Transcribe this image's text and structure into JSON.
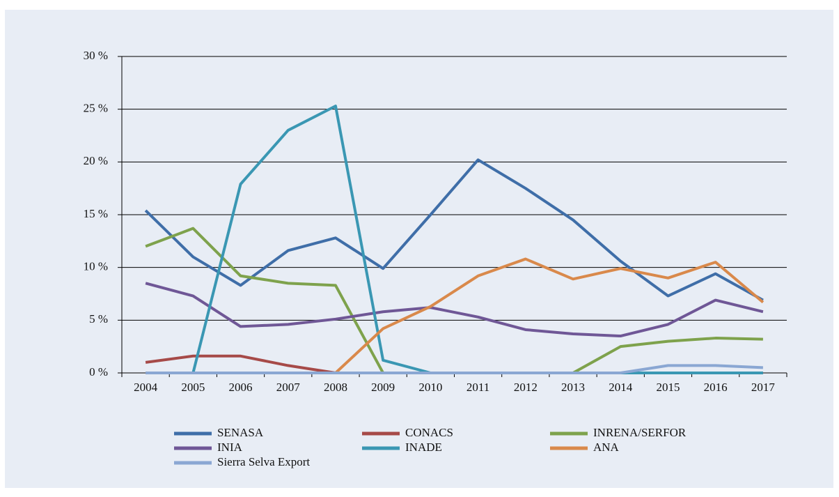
{
  "chart_data": {
    "type": "line",
    "categories": [
      "2004",
      "2005",
      "2006",
      "2007",
      "2008",
      "2009",
      "2010",
      "2011",
      "2012",
      "2013",
      "2014",
      "2015",
      "2016",
      "2017"
    ],
    "ylim": [
      0,
      30
    ],
    "yticks": [
      {
        "value": 0,
        "label": "0 %"
      },
      {
        "value": 5,
        "label": "5 %"
      },
      {
        "value": 10,
        "label": "10 %"
      },
      {
        "value": 15,
        "label": "15 %"
      },
      {
        "value": 20,
        "label": "20 %"
      },
      {
        "value": 25,
        "label": "25 %"
      },
      {
        "value": 30,
        "label": "30 %"
      }
    ],
    "grid": true,
    "legend": "bottom",
    "series": [
      {
        "name": "SENASA",
        "color": "#3f6ea8",
        "values": [
          15.4,
          11.0,
          8.3,
          11.6,
          12.8,
          9.9,
          15.0,
          20.2,
          17.5,
          14.5,
          10.6,
          7.3,
          9.4,
          6.9
        ]
      },
      {
        "name": "CONACS",
        "color": "#a64a48",
        "values": [
          1.0,
          1.6,
          1.6,
          0.7,
          0,
          0,
          0,
          0,
          0,
          0,
          0,
          0,
          0,
          0
        ]
      },
      {
        "name": "INRENA/SERFOR",
        "color": "#7ea24c",
        "values": [
          12.0,
          13.7,
          9.2,
          8.5,
          8.3,
          0,
          0,
          0,
          0,
          0,
          2.5,
          3.0,
          3.3,
          3.2
        ]
      },
      {
        "name": "INIA",
        "color": "#6f5796",
        "values": [
          8.5,
          7.3,
          4.4,
          4.6,
          5.1,
          5.8,
          6.2,
          5.3,
          4.1,
          3.7,
          3.5,
          4.6,
          6.9,
          5.8
        ]
      },
      {
        "name": "INADE",
        "color": "#3a97b3",
        "values": [
          0,
          0,
          17.9,
          23.0,
          25.3,
          1.2,
          0,
          0,
          0,
          0,
          0,
          0,
          0,
          0
        ]
      },
      {
        "name": "ANA",
        "color": "#d9894b",
        "values": [
          0,
          0,
          0,
          0,
          0,
          4.2,
          6.3,
          9.2,
          10.8,
          8.9,
          9.9,
          9.0,
          10.5,
          6.7
        ]
      },
      {
        "name": "Sierra Selva Export",
        "color": "#8aa7d3",
        "values": [
          0,
          0,
          0,
          0,
          0,
          0,
          0,
          0,
          0,
          0,
          0,
          0.7,
          0.7,
          0.5
        ]
      }
    ]
  }
}
